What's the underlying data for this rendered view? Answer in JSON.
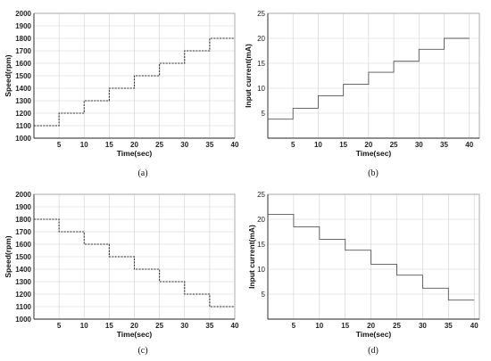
{
  "chart_data": [
    {
      "id": "a",
      "type": "line",
      "caption": "(a)",
      "xlabel": "Time(sec)",
      "ylabel": "Speed(rpm)",
      "xlim": [
        0,
        40
      ],
      "ylim": [
        1000,
        2000
      ],
      "x_ticks": [
        5,
        10,
        15,
        20,
        25,
        30,
        35,
        40
      ],
      "y_ticks": [
        1000,
        1100,
        1200,
        1300,
        1400,
        1500,
        1600,
        1700,
        1800,
        1900,
        2000
      ],
      "grid": true,
      "style": "dashed-step",
      "series": [
        {
          "values_x": [
            0,
            5,
            5,
            10,
            10,
            15,
            15,
            20,
            20,
            25,
            25,
            30,
            30,
            35,
            35,
            40
          ],
          "values_y": [
            1100,
            1100,
            1200,
            1200,
            1300,
            1300,
            1400,
            1400,
            1500,
            1500,
            1600,
            1600,
            1700,
            1700,
            1800,
            1800
          ]
        }
      ]
    },
    {
      "id": "b",
      "type": "line",
      "caption": "(b)",
      "xlabel": "Time(sec)",
      "ylabel": "Input current(mA)",
      "xlim": [
        0,
        42
      ],
      "ylim": [
        0,
        25
      ],
      "x_ticks": [
        5,
        10,
        15,
        20,
        25,
        30,
        35,
        40
      ],
      "y_ticks": [
        5,
        10,
        15,
        20,
        25
      ],
      "grid": true,
      "style": "solid-step",
      "series": [
        {
          "values_x": [
            0,
            5,
            5,
            10,
            10,
            15,
            15,
            20,
            20,
            25,
            25,
            30,
            30,
            35,
            35,
            40
          ],
          "values_y": [
            3.8,
            3.8,
            6,
            6,
            8.5,
            8.5,
            10.8,
            10.8,
            13.2,
            13.2,
            15.4,
            15.4,
            17.8,
            17.8,
            20,
            20
          ]
        }
      ]
    },
    {
      "id": "c",
      "type": "line",
      "caption": "(c)",
      "xlabel": "Time(sec)",
      "ylabel": "Speed(rpm)",
      "xlim": [
        0,
        40
      ],
      "ylim": [
        1000,
        2000
      ],
      "x_ticks": [
        5,
        10,
        15,
        20,
        25,
        30,
        35,
        40
      ],
      "y_ticks": [
        1000,
        1100,
        1200,
        1300,
        1400,
        1500,
        1600,
        1700,
        1800,
        1900,
        2000
      ],
      "grid": true,
      "style": "dashed-step",
      "series": [
        {
          "values_x": [
            0,
            5,
            5,
            10,
            10,
            15,
            15,
            20,
            20,
            25,
            25,
            30,
            30,
            35,
            35,
            40
          ],
          "values_y": [
            1800,
            1800,
            1700,
            1700,
            1600,
            1600,
            1500,
            1500,
            1400,
            1400,
            1300,
            1300,
            1200,
            1200,
            1100,
            1100
          ]
        }
      ]
    },
    {
      "id": "d",
      "type": "line",
      "caption": "(d)",
      "xlabel": "Time(sec)",
      "ylabel": "Input current(mA)",
      "xlim": [
        0,
        41
      ],
      "ylim": [
        0,
        25
      ],
      "x_ticks": [
        5,
        10,
        15,
        20,
        25,
        30,
        35,
        40
      ],
      "y_ticks": [
        5,
        10,
        15,
        20,
        25
      ],
      "grid": true,
      "style": "solid-step",
      "series": [
        {
          "values_x": [
            0,
            5,
            5,
            10,
            10,
            15,
            15,
            20,
            20,
            25,
            25,
            30,
            30,
            35,
            35,
            40
          ],
          "values_y": [
            21,
            21,
            18.5,
            18.5,
            16,
            16,
            13.8,
            13.8,
            11,
            11,
            8.8,
            8.8,
            6.2,
            6.2,
            3.8,
            3.8
          ]
        }
      ]
    }
  ]
}
